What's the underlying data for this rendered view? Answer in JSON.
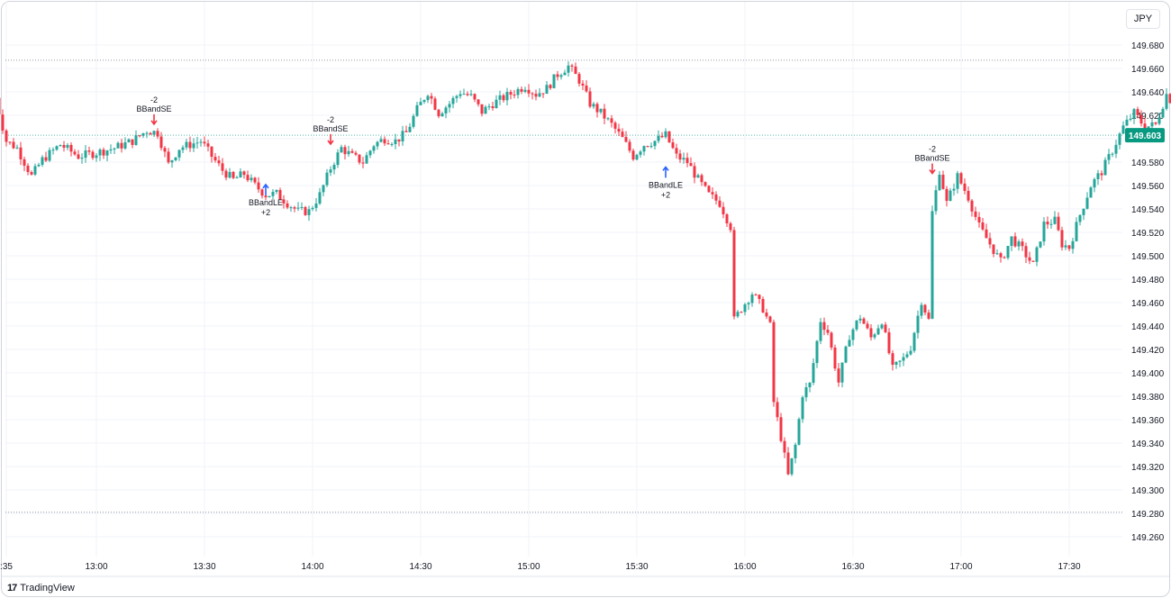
{
  "currency": "JPY",
  "branding": {
    "logo_glyph": "17",
    "name": "TradingView"
  },
  "colors": {
    "up": "#26a69a",
    "down": "#f23645",
    "signal_long": "#2962ff",
    "signal_short": "#f23645",
    "price_badge": "#089981"
  },
  "chart_data": {
    "type": "candlestick",
    "title": "",
    "ylim": [
      149.25,
      149.69
    ],
    "y_ticks": [
      "149.680",
      "149.660",
      "149.640",
      "149.620",
      "149.600",
      "149.580",
      "149.560",
      "149.540",
      "149.520",
      "149.500",
      "149.480",
      "149.460",
      "149.440",
      "149.420",
      "149.400",
      "149.380",
      "149.360",
      "149.340",
      "149.320",
      "149.300",
      "149.280",
      "149.260"
    ],
    "x_ticks": [
      ":35",
      "13:00",
      "13:30",
      "14:00",
      "14:30",
      "15:00",
      "15:30",
      "16:00",
      "16:30",
      "17:00",
      "17:30"
    ],
    "x_tick_minutes": [
      755,
      780,
      810,
      840,
      870,
      900,
      930,
      960,
      990,
      1020,
      1050
    ],
    "current_price": "149.603",
    "session_high": 149.667,
    "session_low": 149.281,
    "anchors": [
      [
        752,
        149.635
      ],
      [
        755,
        149.598
      ],
      [
        758,
        149.592
      ],
      [
        762,
        149.568
      ],
      [
        765,
        149.582
      ],
      [
        770,
        149.595
      ],
      [
        775,
        149.585
      ],
      [
        780,
        149.588
      ],
      [
        785,
        149.592
      ],
      [
        790,
        149.598
      ],
      [
        794,
        149.607
      ],
      [
        797,
        149.605
      ],
      [
        800,
        149.578
      ],
      [
        803,
        149.592
      ],
      [
        806,
        149.595
      ],
      [
        809,
        149.598
      ],
      [
        812,
        149.585
      ],
      [
        815,
        149.573
      ],
      [
        818,
        149.565
      ],
      [
        821,
        149.57
      ],
      [
        824,
        149.56
      ],
      [
        827,
        149.552
      ],
      [
        830,
        149.553
      ],
      [
        833,
        149.545
      ],
      [
        836,
        149.538
      ],
      [
        839,
        149.538
      ],
      [
        842,
        149.552
      ],
      [
        845,
        149.575
      ],
      [
        848,
        149.592
      ],
      [
        851,
        149.585
      ],
      [
        854,
        149.58
      ],
      [
        857,
        149.595
      ],
      [
        860,
        149.6
      ],
      [
        863,
        149.598
      ],
      [
        866,
        149.605
      ],
      [
        869,
        149.625
      ],
      [
        872,
        149.64
      ],
      [
        875,
        149.622
      ],
      [
        878,
        149.63
      ],
      [
        881,
        149.64
      ],
      [
        884,
        149.636
      ],
      [
        887,
        149.623
      ],
      [
        890,
        149.63
      ],
      [
        893,
        149.635
      ],
      [
        896,
        149.64
      ],
      [
        899,
        149.645
      ],
      [
        902,
        149.638
      ],
      [
        905,
        149.643
      ],
      [
        908,
        149.655
      ],
      [
        911,
        149.662
      ],
      [
        914,
        149.65
      ],
      [
        917,
        149.63
      ],
      [
        920,
        149.622
      ],
      [
        923,
        149.612
      ],
      [
        926,
        149.6
      ],
      [
        929,
        149.585
      ],
      [
        932,
        149.595
      ],
      [
        935,
        149.598
      ],
      [
        938,
        149.603
      ],
      [
        941,
        149.585
      ],
      [
        944,
        149.58
      ],
      [
        947,
        149.565
      ],
      [
        950,
        149.552
      ],
      [
        953,
        149.545
      ],
      [
        956,
        149.525
      ],
      [
        957,
        149.445
      ],
      [
        959,
        149.455
      ],
      [
        962,
        149.468
      ],
      [
        965,
        149.455
      ],
      [
        967,
        149.44
      ],
      [
        968,
        149.375
      ],
      [
        970,
        149.345
      ],
      [
        972,
        149.312
      ],
      [
        974,
        149.338
      ],
      [
        976,
        149.382
      ],
      [
        978,
        149.39
      ],
      [
        981,
        149.445
      ],
      [
        983,
        149.435
      ],
      [
        986,
        149.392
      ],
      [
        989,
        149.432
      ],
      [
        992,
        149.448
      ],
      [
        995,
        149.43
      ],
      [
        998,
        149.445
      ],
      [
        1001,
        149.403
      ],
      [
        1004,
        149.412
      ],
      [
        1006,
        149.422
      ],
      [
        1009,
        149.462
      ],
      [
        1011,
        149.445
      ],
      [
        1012,
        149.537
      ],
      [
        1014,
        149.573
      ],
      [
        1016,
        149.545
      ],
      [
        1019,
        149.568
      ],
      [
        1022,
        149.55
      ],
      [
        1025,
        149.525
      ],
      [
        1028,
        149.51
      ],
      [
        1031,
        149.495
      ],
      [
        1034,
        149.515
      ],
      [
        1037,
        149.505
      ],
      [
        1040,
        149.492
      ],
      [
        1043,
        149.527
      ],
      [
        1046,
        149.53
      ],
      [
        1048,
        149.51
      ],
      [
        1050,
        149.507
      ],
      [
        1053,
        149.535
      ],
      [
        1056,
        149.56
      ],
      [
        1059,
        149.572
      ],
      [
        1062,
        149.59
      ],
      [
        1065,
        149.61
      ],
      [
        1068,
        149.622
      ],
      [
        1071,
        149.61
      ],
      [
        1074,
        149.612
      ],
      [
        1077,
        149.638
      ],
      [
        1080,
        149.625
      ],
      [
        1083,
        149.605
      ],
      [
        1086,
        149.608
      ],
      [
        1089,
        149.603
      ]
    ],
    "signals": [
      {
        "label": "BBandSE",
        "qty": "-2",
        "direction": "short",
        "minute": 796,
        "price": 149.607
      },
      {
        "label": "BBandLE",
        "qty": "+2",
        "direction": "long",
        "minute": 827,
        "price": 149.567
      },
      {
        "label": "BBandSE",
        "qty": "-2",
        "direction": "short",
        "minute": 845,
        "price": 149.59
      },
      {
        "label": "BBandLE",
        "qty": "+2",
        "direction": "long",
        "minute": 938,
        "price": 149.582
      },
      {
        "label": "BBandSE",
        "qty": "-2",
        "direction": "short",
        "minute": 1012,
        "price": 149.565
      }
    ]
  }
}
